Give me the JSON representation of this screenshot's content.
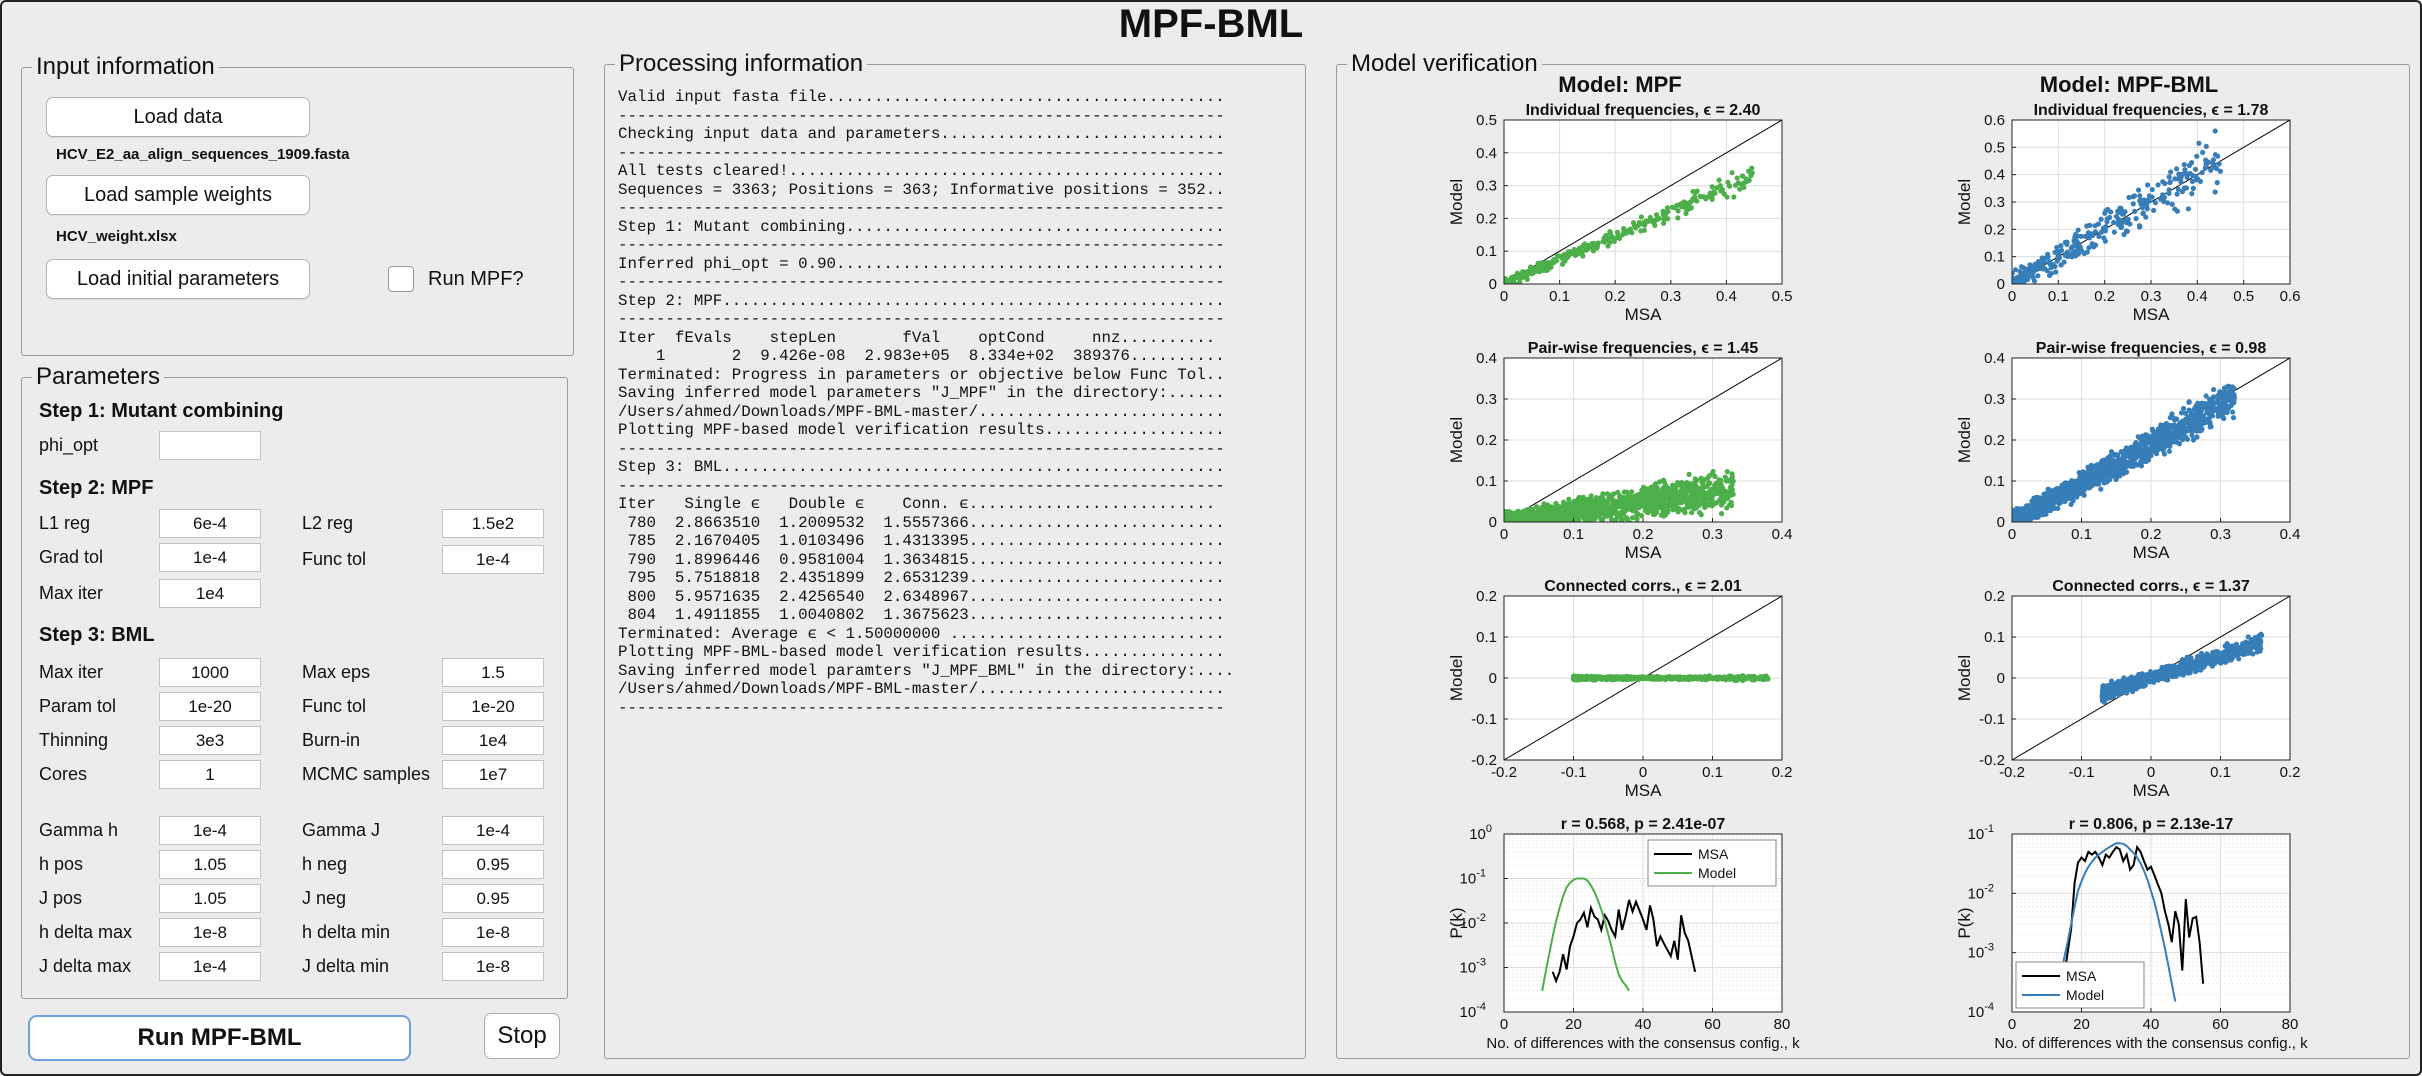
{
  "app": {
    "title": "MPF-BML"
  },
  "input": {
    "title": "Input information",
    "load_data": "Load data",
    "data_file": "HCV_E2_aa_align_sequences_1909.fasta",
    "load_weights": "Load sample weights",
    "weights_file": "HCV_weight.xlsx",
    "load_params": "Load initial parameters",
    "run_mpf_label": "Run MPF?"
  },
  "params": {
    "title": "Parameters",
    "step1": "Step 1: Mutant combining",
    "phi_opt": {
      "label": "phi_opt",
      "value": ""
    },
    "step2": "Step 2: MPF",
    "l1_reg": {
      "label": "L1 reg",
      "value": "6e-4"
    },
    "l2_reg": {
      "label": "L2 reg",
      "value": "1.5e2"
    },
    "grad_tol": {
      "label": "Grad tol",
      "value": "1e-4"
    },
    "func_tol": {
      "label": "Func tol",
      "value": "1e-4"
    },
    "max_iter_mpf": {
      "label": "Max iter",
      "value": "1e4"
    },
    "step3": "Step 3: BML",
    "max_iter_bml": {
      "label": "Max iter",
      "value": "1000"
    },
    "max_eps": {
      "label": "Max eps",
      "value": "1.5"
    },
    "param_tol": {
      "label": "Param tol",
      "value": "1e-20"
    },
    "func_tol_bml": {
      "label": "Func tol",
      "value": "1e-20"
    },
    "thinning": {
      "label": "Thinning",
      "value": "3e3"
    },
    "burn_in": {
      "label": "Burn-in",
      "value": "1e4"
    },
    "cores": {
      "label": "Cores",
      "value": "1"
    },
    "mcmc": {
      "label": "MCMC samples",
      "value": "1e7"
    },
    "gamma_h": {
      "label": "Gamma h",
      "value": "1e-4"
    },
    "gamma_j": {
      "label": "Gamma J",
      "value": "1e-4"
    },
    "h_pos": {
      "label": "h pos",
      "value": "1.05"
    },
    "h_neg": {
      "label": "h neg",
      "value": "0.95"
    },
    "j_pos": {
      "label": "J pos",
      "value": "1.05"
    },
    "j_neg": {
      "label": "J neg",
      "value": "0.95"
    },
    "h_delta_max": {
      "label": "h delta max",
      "value": "1e-8"
    },
    "h_delta_min": {
      "label": "h delta min",
      "value": "1e-8"
    },
    "j_delta_max": {
      "label": "J delta max",
      "value": "1e-4"
    },
    "j_delta_min": {
      "label": "J delta min",
      "value": "1e-8"
    }
  },
  "actions": {
    "run": "Run MPF-BML",
    "stop": "Stop"
  },
  "processing": {
    "title": "Processing information",
    "lines": [
      "Valid input fasta file..........................................",
      "----------------------------------------------------------------",
      "Checking input data and parameters..............................",
      "----------------------------------------------------------------",
      "All tests cleared!..............................................",
      "Sequences = 3363; Positions = 363; Informative positions = 352..",
      "----------------------------------------------------------------",
      "Step 1: Mutant combining........................................",
      "----------------------------------------------------------------",
      "Inferred phi_opt = 0.90.........................................",
      "----------------------------------------------------------------",
      "Step 2: MPF.....................................................",
      "----------------------------------------------------------------",
      "Iter  fEvals    stepLen       fVal    optCond     nnz..........",
      "    1       2  9.426e-08  2.983e+05  8.334e+02  389376..........",
      "Terminated: Progress in parameters or objective below Func Tol..",
      "Saving inferred model parameters \"J_MPF\" in the directory:......",
      "/Users/ahmed/Downloads/MPF-BML-master/..........................",
      "Plotting MPF-based model verification results...................",
      "----------------------------------------------------------------",
      "Step 3: BML.....................................................",
      "----------------------------------------------------------------",
      "Iter   Single ϵ   Double ϵ    Conn. ϵ..........................",
      " 780  2.8663510  1.2009532  1.5557366...........................",
      " 785  2.1670405  1.0103496  1.4313395...........................",
      " 790  1.8996446  0.9581004  1.3634815...........................",
      " 795  5.7518818  2.4351899  2.6531239...........................",
      " 800  5.9571635  2.4256540  2.6348967...........................",
      " 804  1.4911855  1.0040802  1.3675623...........................",
      "Terminated: Average ϵ < 1.50000000 .............................",
      "Plotting MPF-BML-based model verification results...............",
      "Saving inferred model paramters \"J_MPF_BML\" in the directory:....",
      "/Users/ahmed/Downloads/MPF-BML-master/..........................",
      "----------------------------------------------------------------"
    ]
  },
  "verification": {
    "title": "Model verification",
    "mpf_title": "Model: MPF",
    "bml_title": "Model: MPF-BML"
  },
  "colors": {
    "mpf": "#4daf4a",
    "bml": "#377eb8",
    "msa": "#000000"
  },
  "chart_data": [
    {
      "id": "c0",
      "type": "scatter",
      "title": "Individual frequencies, ϵ = 2.40",
      "xlabel": "MSA",
      "ylabel": "Model",
      "xlim": [
        0,
        0.5
      ],
      "ylim": [
        0,
        0.5
      ],
      "xticks": [
        0,
        0.1,
        0.2,
        0.3,
        0.4,
        0.5
      ],
      "yticks": [
        0,
        0.1,
        0.2,
        0.3,
        0.4,
        0.5
      ],
      "diagonal": true,
      "grid": true,
      "series": [
        {
          "color": "#4daf4a",
          "cloud": {
            "x": [
              0,
              0.45
            ],
            "slope": 0.74,
            "spread": 0.012,
            "n": 320,
            "seed": 11
          }
        }
      ]
    },
    {
      "id": "c1",
      "type": "scatter",
      "title": "Individual frequencies, ϵ = 1.78",
      "xlabel": "MSA",
      "ylabel": "Model",
      "xlim": [
        0,
        0.6
      ],
      "ylim": [
        0,
        0.6
      ],
      "xticks": [
        0,
        0.1,
        0.2,
        0.3,
        0.4,
        0.5,
        0.6
      ],
      "yticks": [
        0,
        0.1,
        0.2,
        0.3,
        0.4,
        0.5,
        0.6
      ],
      "diagonal": true,
      "grid": true,
      "series": [
        {
          "color": "#377eb8",
          "cloud": {
            "x": [
              0,
              0.45
            ],
            "slope": 1.0,
            "spread": 0.035,
            "n": 320,
            "seed": 12
          }
        }
      ]
    },
    {
      "id": "c2",
      "type": "scatter",
      "title": "Pair-wise frequencies, ϵ = 1.45",
      "xlabel": "MSA",
      "ylabel": "Model",
      "xlim": [
        0,
        0.4
      ],
      "ylim": [
        0,
        0.4
      ],
      "xticks": [
        0,
        0.1,
        0.2,
        0.3,
        0.4
      ],
      "yticks": [
        0,
        0.1,
        0.2,
        0.3,
        0.4
      ],
      "diagonal": true,
      "grid": true,
      "series": [
        {
          "color": "#4daf4a",
          "cloud": {
            "x": [
              0,
              0.33
            ],
            "slope": 0.24,
            "spread": 0.02,
            "n": 1400,
            "seed": 13
          }
        }
      ]
    },
    {
      "id": "c3",
      "type": "scatter",
      "title": "Pair-wise frequencies, ϵ = 0.98",
      "xlabel": "MSA",
      "ylabel": "Model",
      "xlim": [
        0,
        0.4
      ],
      "ylim": [
        0,
        0.4
      ],
      "xticks": [
        0,
        0.1,
        0.2,
        0.3,
        0.4
      ],
      "yticks": [
        0,
        0.1,
        0.2,
        0.3,
        0.4
      ],
      "diagonal": true,
      "grid": true,
      "series": [
        {
          "color": "#377eb8",
          "cloud": {
            "x": [
              0,
              0.32
            ],
            "slope": 0.95,
            "spread": 0.02,
            "n": 1400,
            "seed": 14
          }
        }
      ]
    },
    {
      "id": "c4",
      "type": "scatter",
      "title": "Connected corrs., ϵ = 2.01",
      "xlabel": "MSA",
      "ylabel": "Model",
      "xlim": [
        -0.2,
        0.2
      ],
      "ylim": [
        -0.2,
        0.2
      ],
      "xticks": [
        -0.2,
        -0.1,
        0,
        0.1,
        0.2
      ],
      "yticks": [
        -0.2,
        -0.1,
        0,
        0.1,
        0.2
      ],
      "diagonal": true,
      "grid": true,
      "series": [
        {
          "color": "#4daf4a",
          "cloud": {
            "x": [
              -0.1,
              0.18
            ],
            "slope": 0.0,
            "spread": 0.003,
            "n": 700,
            "seed": 15
          }
        }
      ]
    },
    {
      "id": "c5",
      "type": "scatter",
      "title": "Connected corrs., ϵ = 1.37",
      "xlabel": "MSA",
      "ylabel": "Model",
      "xlim": [
        -0.2,
        0.2
      ],
      "ylim": [
        -0.2,
        0.2
      ],
      "xticks": [
        -0.2,
        -0.1,
        0,
        0.1,
        0.2
      ],
      "yticks": [
        -0.2,
        -0.1,
        0,
        0.1,
        0.2
      ],
      "diagonal": true,
      "grid": true,
      "series": [
        {
          "color": "#377eb8",
          "cloud": {
            "x": [
              -0.07,
              0.16
            ],
            "slope": 0.55,
            "spread": 0.014,
            "n": 900,
            "seed": 16
          }
        }
      ]
    },
    {
      "id": "c6",
      "type": "line",
      "title": "r = 0.568, p = 2.41e-07",
      "xlabel": "No. of differences with the consensus config., k",
      "ylabel": "P(k)",
      "xlim": [
        0,
        80
      ],
      "ylog": true,
      "ylim": [
        0.0001,
        1
      ],
      "xticks": [
        0,
        20,
        40,
        60,
        80
      ],
      "ytick_exps": [
        -4,
        -3,
        -2,
        -1,
        0
      ],
      "grid": true,
      "legend": "top-right",
      "series": [
        {
          "name": "MSA",
          "color": "#000000",
          "x": [
            14,
            15,
            16,
            17,
            18,
            19,
            20,
            21,
            22,
            23,
            24,
            25,
            26,
            27,
            28,
            29,
            30,
            31,
            32,
            33,
            34,
            35,
            36,
            37,
            38,
            39,
            40,
            41,
            42,
            43,
            44,
            45,
            46,
            47,
            48,
            49,
            50,
            51,
            52,
            53,
            54,
            55
          ],
          "y": [
            0.0008,
            0.0005,
            0.0008,
            0.002,
            0.0009,
            0.003,
            0.005,
            0.01,
            0.012,
            0.017,
            0.008,
            0.022,
            0.014,
            0.012,
            0.007,
            0.015,
            0.011,
            0.007,
            0.005,
            0.02,
            0.007,
            0.014,
            0.033,
            0.018,
            0.03,
            0.019,
            0.012,
            0.007,
            0.025,
            0.012,
            0.003,
            0.005,
            0.0035,
            0.0025,
            0.0018,
            0.004,
            0.0015,
            0.015,
            0.006,
            0.004,
            0.0018,
            0.0008
          ]
        },
        {
          "name": "Model",
          "color": "#4daf4a",
          "x": [
            11,
            12,
            13,
            14,
            15,
            16,
            17,
            18,
            19,
            20,
            21,
            22,
            23,
            24,
            25,
            26,
            27,
            28,
            29,
            30,
            31,
            32,
            33,
            34,
            35,
            36
          ],
          "y": [
            0.0003,
            0.0008,
            0.002,
            0.005,
            0.011,
            0.022,
            0.04,
            0.063,
            0.08,
            0.093,
            0.1,
            0.1,
            0.1,
            0.09,
            0.07,
            0.05,
            0.033,
            0.02,
            0.011,
            0.0055,
            0.0028,
            0.0013,
            0.0007,
            0.0005,
            0.0004,
            0.0003
          ]
        }
      ]
    },
    {
      "id": "c7",
      "type": "line",
      "title": "r = 0.806, p = 2.13e-17",
      "xlabel": "No. of differences with the consensus config., k",
      "ylabel": "P(k)",
      "xlim": [
        0,
        80
      ],
      "ylog": true,
      "ylim": [
        0.0001,
        0.1
      ],
      "xticks": [
        0,
        20,
        40,
        60,
        80
      ],
      "ytick_exps": [
        -4,
        -3,
        -2,
        -1
      ],
      "grid": true,
      "legend": "bottom-left",
      "series": [
        {
          "name": "MSA",
          "color": "#000000",
          "x": [
            14,
            15,
            16,
            17,
            18,
            19,
            20,
            21,
            22,
            23,
            24,
            25,
            26,
            27,
            28,
            29,
            30,
            31,
            32,
            33,
            34,
            35,
            36,
            37,
            38,
            39,
            40,
            41,
            42,
            43,
            44,
            45,
            46,
            47,
            48,
            49,
            50,
            51,
            52,
            53,
            54,
            55
          ],
          "y": [
            0.0003,
            0.0004,
            0.001,
            0.0025,
            0.015,
            0.033,
            0.04,
            0.035,
            0.05,
            0.045,
            0.05,
            0.04,
            0.03,
            0.045,
            0.04,
            0.05,
            0.06,
            0.055,
            0.035,
            0.045,
            0.025,
            0.03,
            0.06,
            0.05,
            0.035,
            0.025,
            0.028,
            0.02,
            0.014,
            0.01,
            0.005,
            0.003,
            0.0015,
            0.005,
            0.003,
            0.0005,
            0.008,
            0.0018,
            0.0038,
            0.004,
            0.0015,
            0.0003
          ]
        },
        {
          "name": "Model",
          "color": "#377eb8",
          "x": [
            13,
            14,
            15,
            16,
            17,
            18,
            19,
            20,
            21,
            22,
            23,
            24,
            25,
            26,
            27,
            28,
            29,
            30,
            31,
            32,
            33,
            34,
            35,
            36,
            37,
            38,
            39,
            40,
            41,
            42,
            43,
            44,
            45,
            46,
            47
          ],
          "y": [
            0.0002,
            0.0004,
            0.0008,
            0.0015,
            0.003,
            0.006,
            0.011,
            0.016,
            0.022,
            0.028,
            0.034,
            0.04,
            0.045,
            0.05,
            0.055,
            0.06,
            0.065,
            0.07,
            0.07,
            0.068,
            0.063,
            0.055,
            0.048,
            0.04,
            0.032,
            0.024,
            0.017,
            0.011,
            0.007,
            0.004,
            0.0022,
            0.0012,
            0.0006,
            0.0003,
            0.00015
          ]
        }
      ]
    }
  ]
}
